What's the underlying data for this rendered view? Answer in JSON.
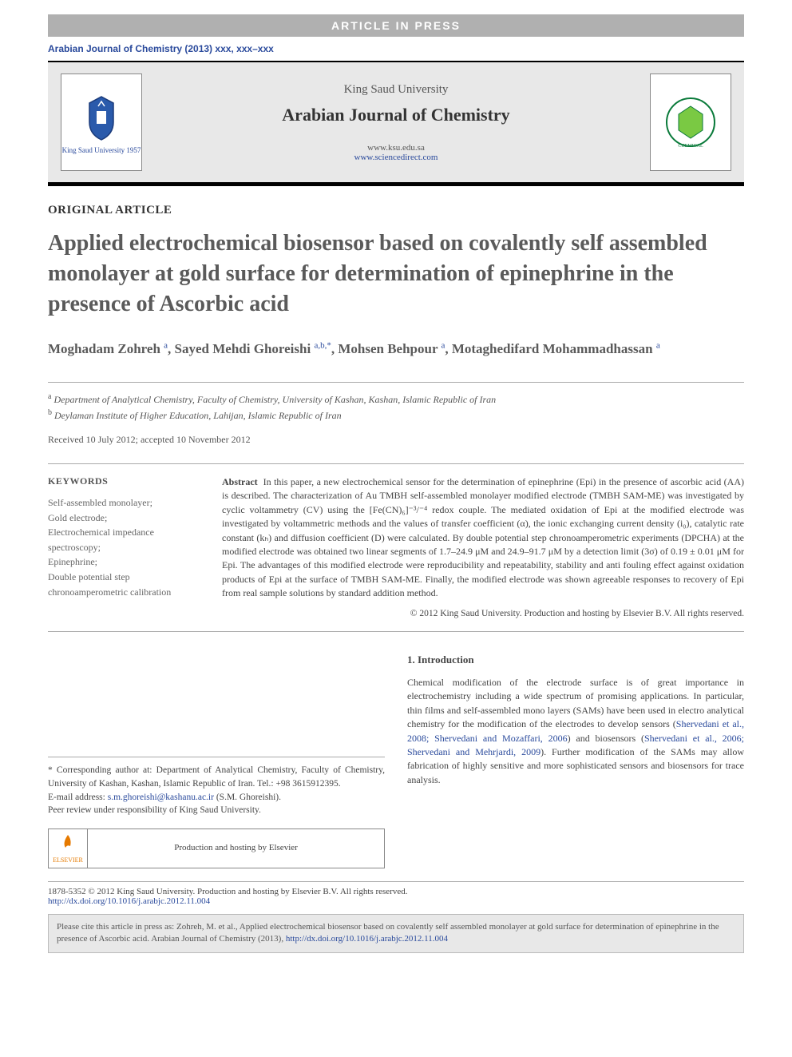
{
  "banner": {
    "text": "ARTICLE IN PRESS"
  },
  "journal_ref": "Arabian Journal of Chemistry (2013) xxx, xxx–xxx",
  "header": {
    "university": "King Saud University",
    "journal": "Arabian Journal of Chemistry",
    "link1": "www.ksu.edu.sa",
    "link2": "www.sciencedirect.com",
    "left_logo_label": "King Saud University 1957",
    "right_logo_label": "SAUDI CHEMICAL SOCIETY"
  },
  "article_type": "ORIGINAL ARTICLE",
  "title": "Applied electrochemical biosensor based on covalently self assembled monolayer at gold surface for determination of epinephrine in the presence of Ascorbic acid",
  "authors_html": "Moghadam Zohreh <sup><a>a</a></sup>, Sayed Mehdi Ghoreishi <sup><a>a,b,*</a></sup>, Mohsen Behpour <sup><a>a</a></sup>, Motaghedifard Mohammadhassan <sup><a>a</a></sup>",
  "affiliations": {
    "a": "Department of Analytical Chemistry, Faculty of Chemistry, University of Kashan, Kashan, Islamic Republic of Iran",
    "b": "Deylaman Institute of Higher Education, Lahijan, Islamic Republic of Iran"
  },
  "dates": "Received 10 July 2012; accepted 10 November 2012",
  "keywords_head": "KEYWORDS",
  "keywords": "Self-assembled monolayer;\nGold electrode;\nElectrochemical impedance spectroscopy;\nEpinephrine;\nDouble potential step chronoamperometric calibration",
  "abstract_label": "Abstract",
  "abstract_text": "In this paper, a new electrochemical sensor for the determination of epinephrine (Epi) in the presence of ascorbic acid (AA) is described. The characterization of Au TMBH self-assembled monolayer modified electrode (TMBH SAM-ME) was investigated by cyclic voltammetry (CV) using the [Fe(CN)₆]⁻³/⁻⁴ redox couple. The mediated oxidation of Epi at the modified electrode was investigated by voltammetric methods and the values of transfer coefficient (α), the ionic exchanging current density (i₀), catalytic rate constant (kₕ) and diffusion coefficient (D) were calculated. By double potential step chronoamperometric experiments (DPCHA) at the modified electrode was obtained two linear segments of 1.7–24.9 μM and 24.9–91.7 μM by a detection limit (3σ) of 0.19 ± 0.01 μM for Epi. The advantages of this modified electrode were reproducibility and repeatability, stability and anti fouling effect against oxidation products of Epi at the surface of TMBH SAM-ME. Finally, the modified electrode was shown agreeable responses to recovery of Epi from real sample solutions by standard addition method.",
  "abstract_copyright": "© 2012 King Saud University. Production and hosting by Elsevier B.V. All rights reserved.",
  "corresponding": {
    "text": "* Corresponding author at: Department of Analytical Chemistry, Faculty of Chemistry, University of Kashan, Kashan, Islamic Republic of Iran. Tel.: +98 3615912395.",
    "email_label": "E-mail address:",
    "email": "s.m.ghoreishi@kashanu.ac.ir",
    "email_person": "(S.M. Ghoreishi).",
    "peer": "Peer review under responsibility of King Saud University.",
    "elsevier_logo": "ELSEVIER",
    "elsevier_text": "Production and hosting by Elsevier"
  },
  "intro_head": "1. Introduction",
  "intro_text_1": "Chemical modification of the electrode surface is of great importance in electrochemistry including a wide spectrum of promising applications. In particular, thin films and self-assembled mono layers (SAMs) have been used in electro analytical chemistry for the modification of the electrodes to develop sensors (",
  "intro_cite_1": "Shervedani et al., 2008; Shervedani and Mozaffari, 2006",
  "intro_text_2": ") and biosensors (",
  "intro_cite_2": "Shervedani et al., 2006; Shervedani and Mehrjardi, 2009",
  "intro_text_3": "). Further modification of the SAMs may allow fabrication of highly sensitive and more sophisticated sensors and biosensors for trace analysis.",
  "footer": {
    "issn_line": "1878-5352 © 2012 King Saud University. Production and hosting by Elsevier B.V. All rights reserved.",
    "doi": "http://dx.doi.org/10.1016/j.arabjc.2012.11.004"
  },
  "cite_box": {
    "text": "Please cite this article in press as: Zohreh, M. et al., Applied electrochemical biosensor based on covalently self assembled monolayer at gold surface for determination of epinephrine in the presence of Ascorbic acid. Arabian Journal of Chemistry (2013), ",
    "link": "http://dx.doi.org/10.1016/j.arabjc.2012.11.004"
  },
  "colors": {
    "link": "#2a4a9c",
    "banner_bg": "#b0b0b0",
    "header_bg": "#e8e8e8",
    "text": "#333333"
  }
}
